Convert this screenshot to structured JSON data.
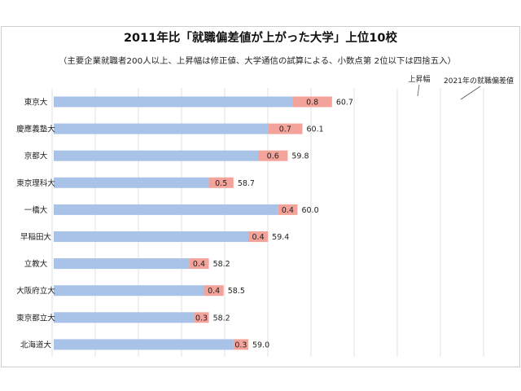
{
  "chart_data": {
    "type": "bar",
    "orientation": "horizontal",
    "stacked": true,
    "title": "2011年比「就職偏差値が上がった大学」上位10校",
    "subtitle": "（主要企業就職者200人以上、上昇幅は修正値、大学通信の試算による、小数点第 2位以下は四捨五入）",
    "legend": {
      "increase": "上昇幅",
      "total": "2021年の就職偏差値"
    },
    "colors": {
      "base": "#a9c3e8",
      "increase": "#f4a39a",
      "grid": "#d9d9d9",
      "frame": "#cfcfcf"
    },
    "grid": true,
    "xlim": [
      0,
      61
    ],
    "categories": [
      "東京大",
      "慶應義塾大",
      "京都大",
      "東京理科大",
      "一橋大",
      "早稲田大",
      "立教大",
      "大阪府立大",
      "東京都立大",
      "北海道大"
    ],
    "increase": [
      0.8,
      0.7,
      0.6,
      0.5,
      0.4,
      0.4,
      0.4,
      0.4,
      0.3,
      0.3
    ],
    "total": [
      60.7,
      60.1,
      59.8,
      58.7,
      60.0,
      59.4,
      58.2,
      58.5,
      58.2,
      59.0
    ],
    "increase_labels": [
      "0.8",
      "0.7",
      "0.6",
      "0.5",
      "0.4",
      "0.4",
      "0.4",
      "0.4",
      "0.3",
      "0.3"
    ],
    "total_labels": [
      "60.7",
      "60.1",
      "59.8",
      "58.7",
      "60.0",
      "59.4",
      "58.2",
      "58.5",
      "58.2",
      "59.0"
    ]
  }
}
